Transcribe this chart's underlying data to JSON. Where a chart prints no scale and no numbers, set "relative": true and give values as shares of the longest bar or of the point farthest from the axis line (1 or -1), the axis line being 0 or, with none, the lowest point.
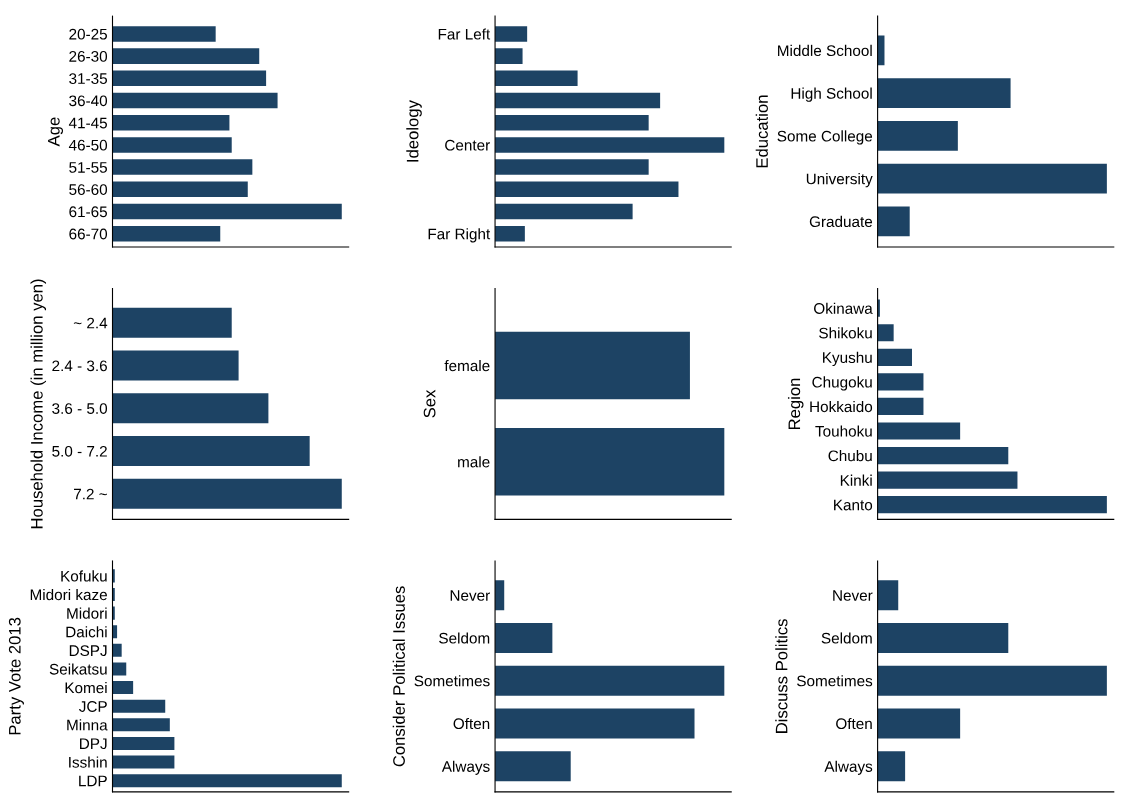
{
  "chart_data": [
    {
      "type": "bar",
      "orientation": "horizontal",
      "relative": true,
      "ylabel": "Age",
      "color": "#1d4364",
      "categories": [
        "20-25",
        "26-30",
        "31-35",
        "36-40",
        "41-45",
        "46-50",
        "51-55",
        "56-60",
        "61-65",
        "66-70"
      ],
      "values": [
        0.45,
        0.64,
        0.67,
        0.72,
        0.51,
        0.52,
        0.61,
        0.59,
        1,
        0.47
      ]
    },
    {
      "type": "bar",
      "orientation": "horizontal",
      "relative": true,
      "ylabel": "Ideology",
      "color": "#1d4364",
      "categories": [
        "Far Left",
        null,
        null,
        null,
        null,
        "Center",
        null,
        null,
        null,
        "Far Right"
      ],
      "values": [
        0.14,
        0.12,
        0.36,
        0.72,
        0.67,
        1,
        0.67,
        0.8,
        0.6,
        0.13
      ]
    },
    {
      "type": "bar",
      "orientation": "horizontal",
      "relative": true,
      "ylabel": "Education",
      "color": "#1d4364",
      "categories": [
        "Middle School",
        "High School",
        "Some College",
        "University",
        "Graduate"
      ],
      "values": [
        0.03,
        0.58,
        0.35,
        1,
        0.14
      ]
    },
    {
      "type": "bar",
      "orientation": "horizontal",
      "relative": true,
      "ylabel": "Household Income (in million yen)",
      "color": "#1d4364",
      "categories": [
        "~ 2.4",
        "2.4 - 3.6",
        "3.6 - 5.0",
        "5.0 - 7.2",
        "7.2 ~"
      ],
      "values": [
        0.52,
        0.55,
        0.68,
        0.86,
        1
      ]
    },
    {
      "type": "bar",
      "orientation": "horizontal",
      "relative": true,
      "ylabel": "Sex",
      "color": "#1d4364",
      "categories": [
        "female",
        "male"
      ],
      "values": [
        0.85,
        1
      ]
    },
    {
      "type": "bar",
      "orientation": "horizontal",
      "relative": true,
      "ylabel": "Region",
      "color": "#1d4364",
      "categories": [
        "Okinawa",
        "Shikoku",
        "Kyushu",
        "Chugoku",
        "Hokkaido",
        "Touhoku",
        "Chubu",
        "Kinki",
        "Kanto"
      ],
      "values": [
        0.01,
        0.07,
        0.15,
        0.2,
        0.2,
        0.36,
        0.57,
        0.61,
        1
      ]
    },
    {
      "type": "bar",
      "orientation": "horizontal",
      "relative": true,
      "ylabel": "Party Vote 2013",
      "color": "#1d4364",
      "categories": [
        "Kofuku",
        "Midori kaze",
        "Midori",
        "Daichi",
        "DSPJ",
        "Seikatsu",
        "Komei",
        "JCP",
        "Minna",
        "DPJ",
        "Isshin",
        "LDP"
      ],
      "values": [
        0.01,
        0.01,
        0.01,
        0.02,
        0.04,
        0.06,
        0.09,
        0.23,
        0.25,
        0.27,
        0.27,
        1
      ]
    },
    {
      "type": "bar",
      "orientation": "horizontal",
      "relative": true,
      "ylabel": "Consider Political Issues",
      "color": "#1d4364",
      "categories": [
        "Never",
        "Seldom",
        "Sometimes",
        "Often",
        "Always"
      ],
      "values": [
        0.04,
        0.25,
        1,
        0.87,
        0.33
      ]
    },
    {
      "type": "bar",
      "orientation": "horizontal",
      "relative": true,
      "ylabel": "Discuss Politics",
      "color": "#1d4364",
      "categories": [
        "Never",
        "Seldom",
        "Sometimes",
        "Often",
        "Always"
      ],
      "values": [
        0.09,
        0.57,
        1,
        0.36,
        0.12
      ]
    }
  ]
}
